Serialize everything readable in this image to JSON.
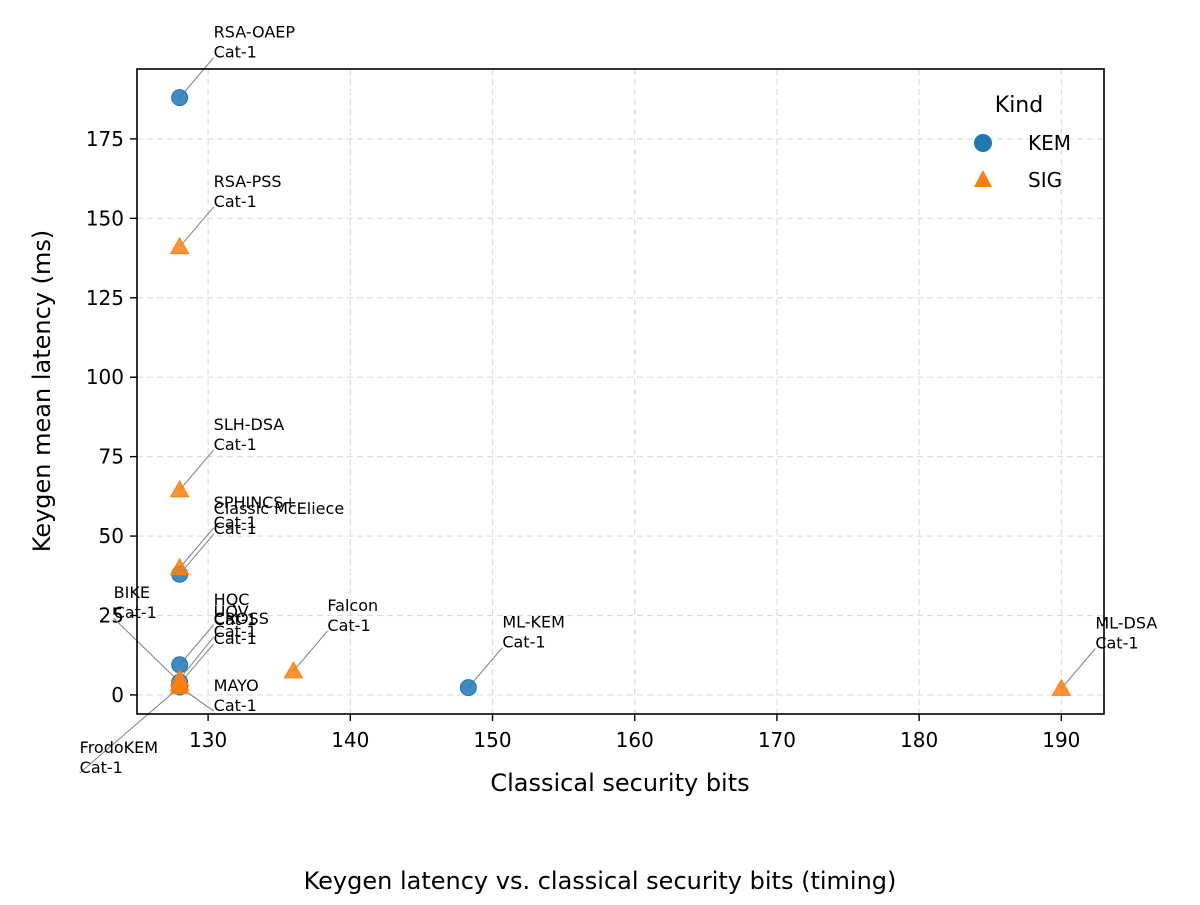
{
  "chart_data": {
    "type": "scatter",
    "title": "",
    "caption": "Keygen latency vs. classical security bits (timing)",
    "xlabel": "Classical security bits",
    "ylabel": "Keygen mean latency (ms)",
    "xlim": [
      125,
      193
    ],
    "ylim": [
      -6,
      197
    ],
    "xticks": [
      130,
      140,
      150,
      160,
      170,
      180,
      190
    ],
    "yticks": [
      0,
      25,
      50,
      75,
      100,
      125,
      150,
      175
    ],
    "grid": true,
    "legend": {
      "title": "Kind",
      "placement": "top-right",
      "entries": [
        {
          "label": "KEM",
          "marker": "circle",
          "color": "#1f77b4"
        },
        {
          "label": "SIG",
          "marker": "triangle",
          "color": "#ff7f0e"
        }
      ]
    },
    "series": [
      {
        "name": "KEM",
        "marker": "circle",
        "color": "#1f77b4",
        "points": [
          {
            "label": [
              "RSA-OAEP",
              "Cat-1"
            ],
            "x": 128,
            "y": 188
          },
          {
            "label": [
              "Classic McEliece",
              "Cat-1"
            ],
            "x": 128,
            "y": 38
          },
          {
            "label": [
              "BIKE",
              "Cat-1"
            ],
            "x": 128,
            "y": 4
          },
          {
            "label": [
              "HQC",
              "Cat-1"
            ],
            "x": 128,
            "y": 9.5
          },
          {
            "label": [
              "FrodoKEM",
              "Cat-1"
            ],
            "x": 128,
            "y": 2.5
          },
          {
            "label": [
              "ML-KEM",
              "Cat-1"
            ],
            "x": 148.3,
            "y": 2.3
          }
        ]
      },
      {
        "name": "SIG",
        "marker": "triangle",
        "color": "#ff7f0e",
        "points": [
          {
            "label": [
              "RSA-PSS",
              "Cat-1"
            ],
            "x": 128,
            "y": 141
          },
          {
            "label": [
              "SLH-DSA",
              "Cat-1"
            ],
            "x": 128,
            "y": 64.5
          },
          {
            "label": [
              "SPHINCS+",
              "Cat-1"
            ],
            "x": 128,
            "y": 40
          },
          {
            "label": [
              "UOV",
              "Cat-1"
            ],
            "x": 128,
            "y": 5
          },
          {
            "label": [
              "CROSS",
              "Cat-1"
            ],
            "x": 128,
            "y": 3.5
          },
          {
            "label": [
              "MAYO",
              "Cat-1"
            ],
            "x": 128,
            "y": 2.5
          },
          {
            "label": [
              "Falcon",
              "Cat-1"
            ],
            "x": 136,
            "y": 7.5
          },
          {
            "label": [
              "ML-DSA",
              "Cat-1"
            ],
            "x": 190,
            "y": 2
          }
        ]
      }
    ]
  }
}
